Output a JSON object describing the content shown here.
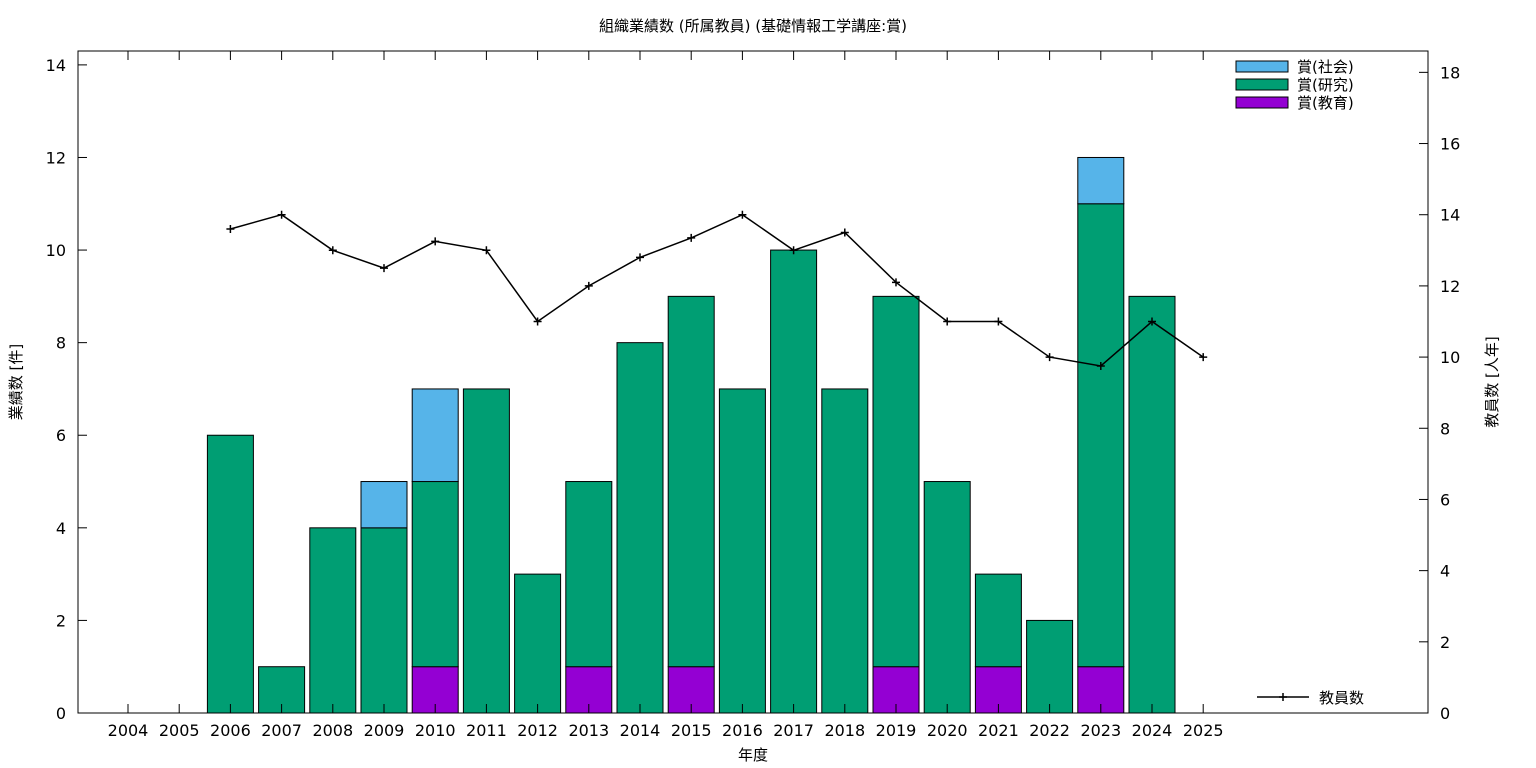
{
  "chart_data": {
    "type": "bar",
    "title": "組織業績数 (所属教員) (基礎情報工学講座:賞)",
    "xlabel": "年度",
    "ylabel": "業績数 [件]",
    "y2label": "教員数 [人年]",
    "categories": [
      "2004",
      "2005",
      "2006",
      "2007",
      "2008",
      "2009",
      "2010",
      "2011",
      "2012",
      "2013",
      "2014",
      "2015",
      "2016",
      "2017",
      "2018",
      "2019",
      "2020",
      "2021",
      "2022",
      "2023",
      "2024",
      "2025"
    ],
    "stacked": true,
    "series": [
      {
        "name": "賞(教育)",
        "color": "#9400d3",
        "values": [
          0,
          0,
          0,
          0,
          0,
          0,
          1,
          0,
          0,
          1,
          0,
          1,
          0,
          0,
          0,
          1,
          0,
          1,
          0,
          1,
          0,
          0
        ]
      },
      {
        "name": "賞(研究)",
        "color": "#009e73",
        "values": [
          0,
          0,
          6,
          1,
          4,
          4,
          4,
          7,
          3,
          4,
          8,
          8,
          7,
          10,
          7,
          8,
          5,
          2,
          2,
          10,
          9,
          0
        ]
      },
      {
        "name": "賞(社会)",
        "color": "#56b4e9",
        "values": [
          0,
          0,
          0,
          0,
          0,
          1,
          2,
          0,
          0,
          0,
          0,
          0,
          0,
          0,
          0,
          0,
          0,
          0,
          0,
          1,
          0,
          0
        ]
      }
    ],
    "line_series": {
      "name": "教員数",
      "color": "#000000",
      "axis": "right",
      "x": [
        "2006",
        "2007",
        "2008",
        "2009",
        "2010",
        "2011",
        "2012",
        "2013",
        "2014",
        "2015",
        "2016",
        "2017",
        "2018",
        "2019",
        "2020",
        "2021",
        "2022",
        "2023",
        "2024",
        "2025"
      ],
      "values": [
        13.6,
        14.0,
        13.0,
        12.5,
        13.25,
        13.0,
        11.0,
        12.0,
        12.8,
        13.35,
        14.0,
        13.0,
        13.5,
        12.1,
        11.0,
        11.0,
        10.0,
        9.75,
        11.0,
        10.0
      ]
    },
    "ylim": [
      0,
      14.3
    ],
    "y_ticks": [
      0,
      2,
      4,
      6,
      8,
      10,
      12,
      14
    ],
    "y2lim": [
      0,
      18.6
    ],
    "y2_ticks": [
      0,
      2,
      4,
      6,
      8,
      10,
      12,
      14,
      16,
      18
    ],
    "legend_placement": "top-right",
    "line_legend_placement": "bottom-right",
    "grid": false
  }
}
